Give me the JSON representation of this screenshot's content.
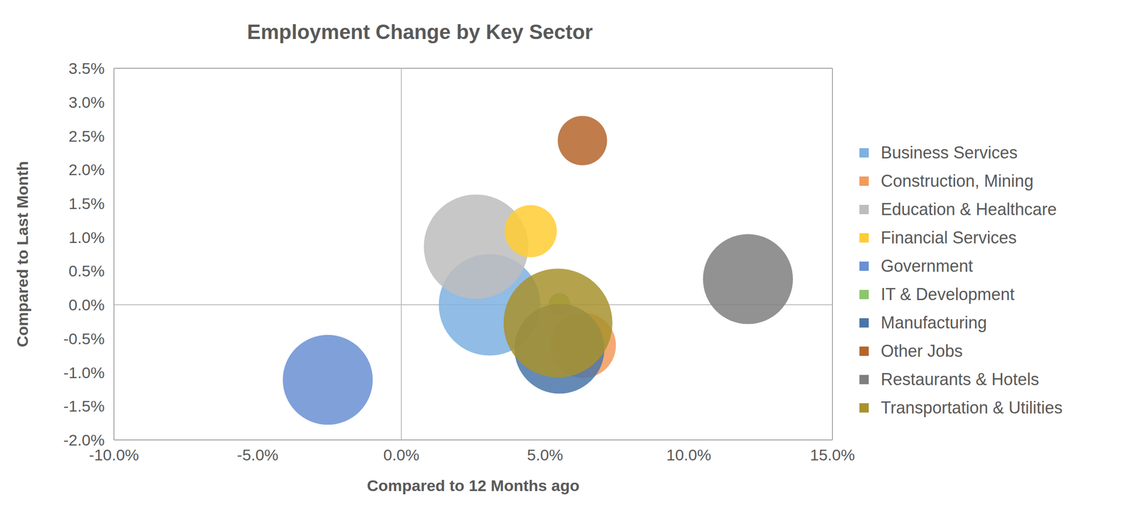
{
  "chart_data": {
    "type": "bubble",
    "title": "Employment Change by Key Sector",
    "x_label": "Compared to 12 Months ago",
    "y_label": "Compared to Last Month",
    "xlim": [
      -10,
      15
    ],
    "xticks": [
      {
        "value": -10,
        "label": "-10.0%"
      },
      {
        "value": -5,
        "label": "-5.0%"
      },
      {
        "value": 0,
        "label": "0.0%"
      },
      {
        "value": 5,
        "label": "5.0%"
      },
      {
        "value": 10,
        "label": "10.0%"
      },
      {
        "value": 15,
        "label": "15.0%"
      }
    ],
    "ylim": [
      -2,
      3.5
    ],
    "yticks": [
      {
        "value": -2,
        "label": "-2.0%"
      },
      {
        "value": -1.5,
        "label": "-1.5%"
      },
      {
        "value": -1,
        "label": "-1.0%"
      },
      {
        "value": -0.5,
        "label": "-0.5%"
      },
      {
        "value": 0,
        "label": "0.0%"
      },
      {
        "value": 0.5,
        "label": "0.5%"
      },
      {
        "value": 1,
        "label": "1.0%"
      },
      {
        "value": 1.5,
        "label": "1.5%"
      },
      {
        "value": 2,
        "label": "2.0%"
      },
      {
        "value": 2.5,
        "label": "2.5%"
      },
      {
        "value": 3,
        "label": "3.0%"
      },
      {
        "value": 3.5,
        "label": "3.5%"
      }
    ],
    "grid": false,
    "legend": "right",
    "series": [
      {
        "name": "Business Services",
        "color": "#7eb0e0",
        "x": [
          3.07
        ],
        "y": [
          0.0
        ],
        "size": [
          4900
        ]
      },
      {
        "name": "Construction, Mining",
        "color": "#f29a5c",
        "x": [
          6.33
        ],
        "y": [
          -0.6
        ],
        "size": [
          2025
        ]
      },
      {
        "name": "Education & Healthcare",
        "color": "#bdbdbd",
        "x": [
          2.6
        ],
        "y": [
          0.86
        ],
        "size": [
          5184
        ]
      },
      {
        "name": "Financial Services",
        "color": "#ffcc33",
        "x": [
          4.5
        ],
        "y": [
          1.09
        ],
        "size": [
          1296
        ]
      },
      {
        "name": "Government",
        "color": "#6a8fd3",
        "x": [
          -2.56
        ],
        "y": [
          -1.11
        ],
        "size": [
          3844
        ]
      },
      {
        "name": "IT & Development",
        "color": "#8dc56c",
        "x": [
          5.5
        ],
        "y": [
          0.01
        ],
        "size": [
          225
        ]
      },
      {
        "name": "Manufacturing",
        "color": "#4a75a8",
        "x": [
          5.5
        ],
        "y": [
          -0.65
        ],
        "size": [
          3844
        ]
      },
      {
        "name": "Other Jobs",
        "color": "#b5652b",
        "x": [
          6.3
        ],
        "y": [
          2.43
        ],
        "size": [
          1156
        ]
      },
      {
        "name": "Restaurants & Hotels",
        "color": "#7f7f7f",
        "x": [
          12.06
        ],
        "y": [
          0.38
        ],
        "size": [
          3844
        ]
      },
      {
        "name": "Transportation & Utilities",
        "color": "#a8922e",
        "x": [
          5.45
        ],
        "y": [
          -0.27
        ],
        "size": [
          5625
        ]
      }
    ]
  }
}
